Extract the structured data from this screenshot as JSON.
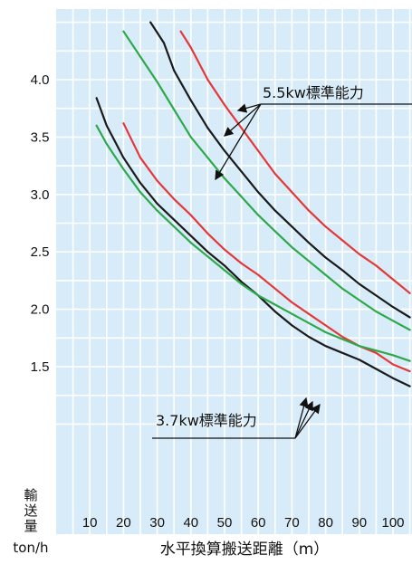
{
  "chart_data": {
    "type": "line",
    "xlabel": "水平換算搬送距離（m）",
    "ylabel_chars": [
      "輸",
      "送",
      "量"
    ],
    "ylabel_unit": "ton/h",
    "x_ticks": [
      "10",
      "20",
      "30",
      "40",
      "50",
      "60",
      "70",
      "80",
      "90",
      "100"
    ],
    "y_ticks": [
      "1.5",
      "2.0",
      "2.5",
      "3.0",
      "3.5",
      "4.0"
    ],
    "xlim": [
      0,
      105
    ],
    "ylim": [
      1.0,
      4.5
    ],
    "grid": true,
    "background_color": "#d7ecf8",
    "grid_color": "#ffffff",
    "colors": {
      "black": "#1a1a1a",
      "red": "#e43838",
      "green": "#2ea84a"
    },
    "annotations": [
      {
        "text": "5.5kw標準能力"
      },
      {
        "text": "3.7kw標準能力"
      }
    ],
    "series": [
      {
        "group": "5.5kw",
        "color": "black",
        "x": [
          28,
          32,
          35,
          40,
          45,
          50,
          55,
          60,
          65,
          70,
          75,
          80,
          85,
          90,
          95,
          100,
          105
        ],
        "y": [
          4.5,
          4.32,
          4.08,
          3.82,
          3.58,
          3.38,
          3.2,
          3.02,
          2.86,
          2.72,
          2.58,
          2.45,
          2.34,
          2.22,
          2.12,
          2.02,
          1.93
        ]
      },
      {
        "group": "5.5kw",
        "color": "red",
        "x": [
          37,
          40,
          45,
          50,
          55,
          60,
          65,
          70,
          75,
          80,
          85,
          90,
          95,
          100,
          105
        ],
        "y": [
          4.42,
          4.28,
          4.0,
          3.78,
          3.58,
          3.38,
          3.18,
          3.02,
          2.86,
          2.72,
          2.6,
          2.48,
          2.38,
          2.26,
          2.14
        ]
      },
      {
        "group": "5.5kw",
        "color": "green",
        "x": [
          20,
          25,
          30,
          35,
          40,
          45,
          50,
          55,
          60,
          65,
          70,
          75,
          80,
          85,
          90,
          95,
          100,
          105
        ],
        "y": [
          4.42,
          4.2,
          3.98,
          3.74,
          3.5,
          3.32,
          3.14,
          2.98,
          2.82,
          2.68,
          2.54,
          2.42,
          2.3,
          2.18,
          2.08,
          1.98,
          1.9,
          1.82
        ]
      },
      {
        "group": "3.7kw",
        "color": "black",
        "x": [
          12,
          15,
          20,
          25,
          30,
          35,
          40,
          45,
          50,
          55,
          60,
          65,
          70,
          75,
          80,
          85,
          90,
          95,
          100,
          105
        ],
        "y": [
          3.84,
          3.6,
          3.32,
          3.1,
          2.92,
          2.78,
          2.64,
          2.5,
          2.38,
          2.24,
          2.12,
          1.98,
          1.86,
          1.76,
          1.68,
          1.62,
          1.56,
          1.48,
          1.4,
          1.33
        ]
      },
      {
        "group": "3.7kw",
        "color": "red",
        "x": [
          20,
          25,
          30,
          35,
          40,
          45,
          50,
          55,
          60,
          65,
          70,
          75,
          80,
          85,
          90,
          95,
          100,
          105
        ],
        "y": [
          3.62,
          3.32,
          3.12,
          2.96,
          2.82,
          2.66,
          2.52,
          2.4,
          2.3,
          2.18,
          2.06,
          1.96,
          1.86,
          1.76,
          1.68,
          1.62,
          1.52,
          1.46
        ]
      },
      {
        "group": "3.7kw",
        "color": "green",
        "x": [
          12,
          15,
          20,
          25,
          30,
          35,
          40,
          45,
          50,
          55,
          60,
          65,
          70,
          75,
          80,
          85,
          90,
          95,
          100,
          105
        ],
        "y": [
          3.6,
          3.44,
          3.22,
          3.02,
          2.86,
          2.72,
          2.58,
          2.46,
          2.34,
          2.22,
          2.12,
          2.04,
          1.96,
          1.88,
          1.8,
          1.74,
          1.68,
          1.64,
          1.6,
          1.55
        ]
      }
    ]
  }
}
